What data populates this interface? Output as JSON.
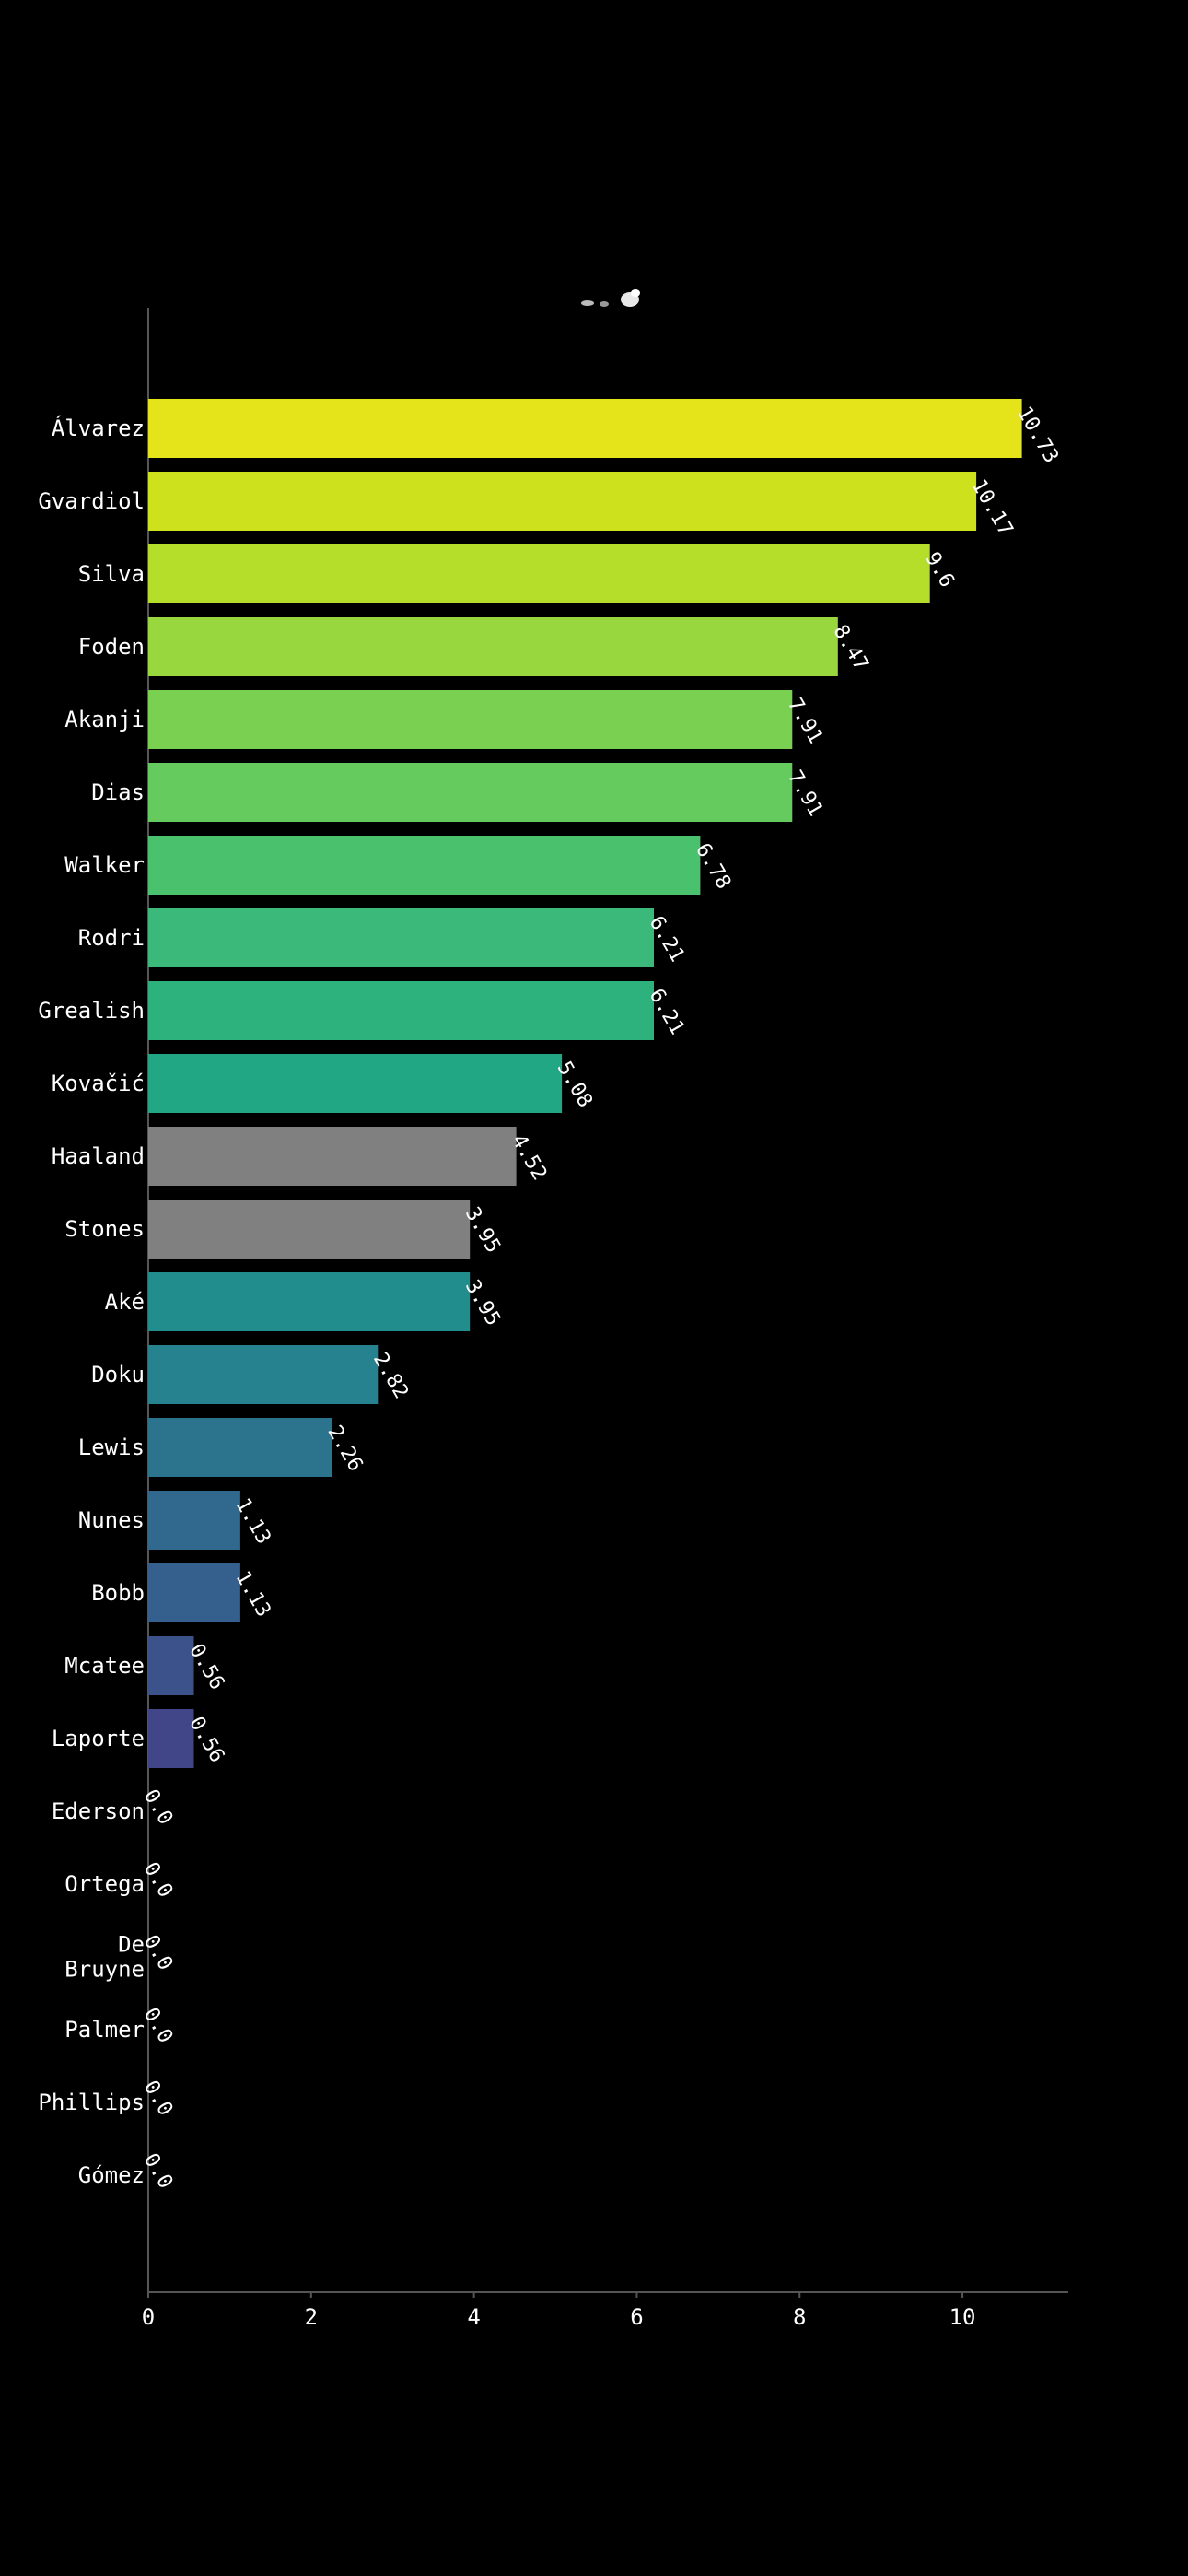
{
  "chart_data": {
    "type": "bar",
    "orientation": "horizontal",
    "title": "",
    "xlabel": "",
    "ylabel": "",
    "xlim": [
      0,
      11.3
    ],
    "xticks": [
      0,
      2,
      4,
      6,
      8,
      10
    ],
    "grid": false,
    "background": "#000000",
    "categories": [
      "Álvarez",
      "Gvardiol",
      "Silva",
      "Foden",
      "Akanji",
      "Dias",
      "Walker",
      "Rodri",
      "Grealish",
      "Kovačić",
      "Haaland",
      "Stones",
      "Aké",
      "Doku",
      "Lewis",
      "Nunes",
      "Bobb",
      "Mcatee",
      "Laporte",
      "Ederson",
      "Ortega",
      "De\nBruyne",
      "Palmer",
      "Phillips",
      "Gómez"
    ],
    "values": [
      10.73,
      10.17,
      9.6,
      8.47,
      7.91,
      7.91,
      6.78,
      6.21,
      6.21,
      5.08,
      4.52,
      3.95,
      3.95,
      2.82,
      2.26,
      1.13,
      1.13,
      0.56,
      0.56,
      0.0,
      0.0,
      0.0,
      0.0,
      0.0,
      0.0
    ],
    "value_labels": [
      "10.73",
      "10.17",
      "9.6",
      "8.47",
      "7.91",
      "7.91",
      "6.78",
      "6.21",
      "6.21",
      "5.08",
      "4.52",
      "3.95",
      "3.95",
      "2.82",
      "2.26",
      "1.13",
      "1.13",
      "0.56",
      "0.56",
      "0.0",
      "0.0",
      "0.0",
      "0.0",
      "0.0",
      "0.0"
    ],
    "colors": [
      "#e5e31a",
      "#cde11d",
      "#b5de2b",
      "#98d83e",
      "#7ad151",
      "#65cb5e",
      "#4ac16d",
      "#3bb97a",
      "#2db27d",
      "#21a784",
      "#808080",
      "#808080",
      "#228d8d",
      "#26828e",
      "#2c738e",
      "#31688e",
      "#355f8d",
      "#3b528b",
      "#404688",
      "#433e85",
      "#46337e",
      "#482878",
      "#481f70",
      "#471365",
      "#440154"
    ]
  }
}
